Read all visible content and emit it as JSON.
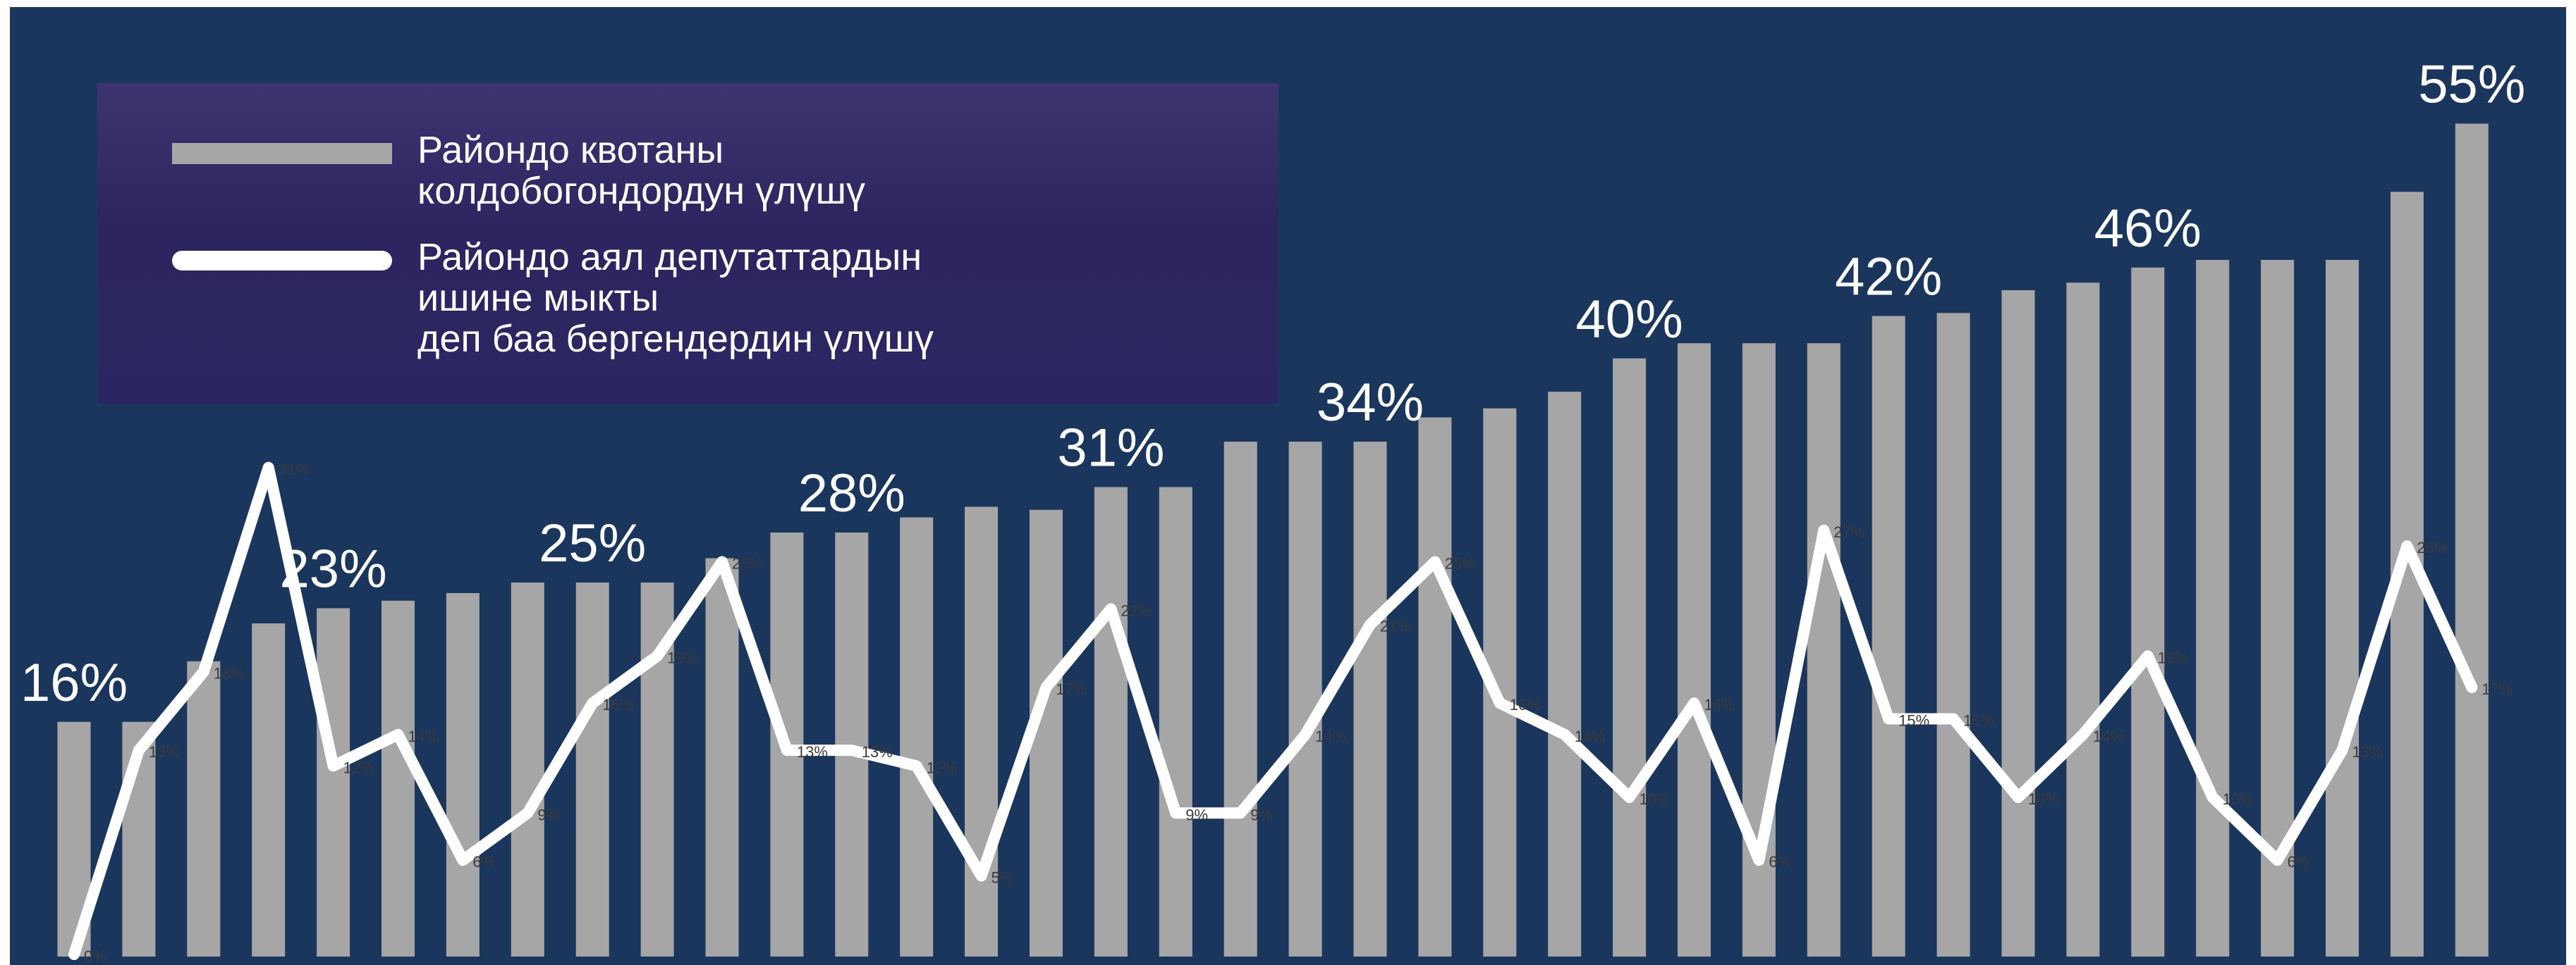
{
  "chart_data": {
    "type": "bar",
    "title": "",
    "xlabel": "",
    "ylabel": "",
    "ylim": [
      0,
      57
    ],
    "grid": false,
    "legend_placement": "top-left",
    "colors": {
      "background": "#1b365d",
      "bars": "#a6a6a6",
      "line": "#ffffff",
      "legend_bg": "#2d2560"
    },
    "series": [
      {
        "name": "Райондо квотаны колдобогондордун үлүшү",
        "type": "bar",
        "values": [
          15.5,
          15.5,
          19.5,
          22,
          23,
          23.5,
          24,
          24.7,
          24.7,
          24.7,
          26.3,
          28,
          28,
          29,
          29.7,
          29.5,
          31,
          31,
          34,
          34,
          34,
          35.6,
          36.2,
          37.3,
          39.5,
          40.5,
          40.5,
          40.5,
          42.3,
          42.5,
          44,
          44.5,
          45.5,
          46,
          46,
          46,
          50.5,
          55
        ]
      },
      {
        "name": "Райондо аял депутаттардын ишине мыкты деп баа бергендердин үлүшү",
        "type": "line",
        "values": [
          0,
          13,
          18,
          31,
          12,
          14,
          6,
          9,
          16,
          19,
          25,
          13,
          13,
          12,
          5,
          17,
          22,
          9,
          9,
          14,
          21,
          25,
          16,
          14,
          10,
          16,
          6,
          27,
          15,
          15,
          10,
          14,
          19,
          10,
          6,
          13,
          26,
          17
        ]
      }
    ],
    "top_labels": [
      {
        "index": 0,
        "text": "16%"
      },
      {
        "index": 4,
        "text": "23%"
      },
      {
        "index": 8,
        "text": "25%"
      },
      {
        "index": 12,
        "text": "28%"
      },
      {
        "index": 16,
        "text": "31%"
      },
      {
        "index": 20,
        "text": "34%"
      },
      {
        "index": 24,
        "text": "40%"
      },
      {
        "index": 28,
        "text": "42%"
      },
      {
        "index": 32,
        "text": "46%"
      },
      {
        "index": 37,
        "text": "55%"
      }
    ]
  },
  "legend": {
    "bar_label": "Райондо квотаны\nколдобогондордун үлүшү",
    "line_label": "Райондо аял депутаттардын\nишине мыкты\nдеп баа бергендердин үлүшү"
  }
}
